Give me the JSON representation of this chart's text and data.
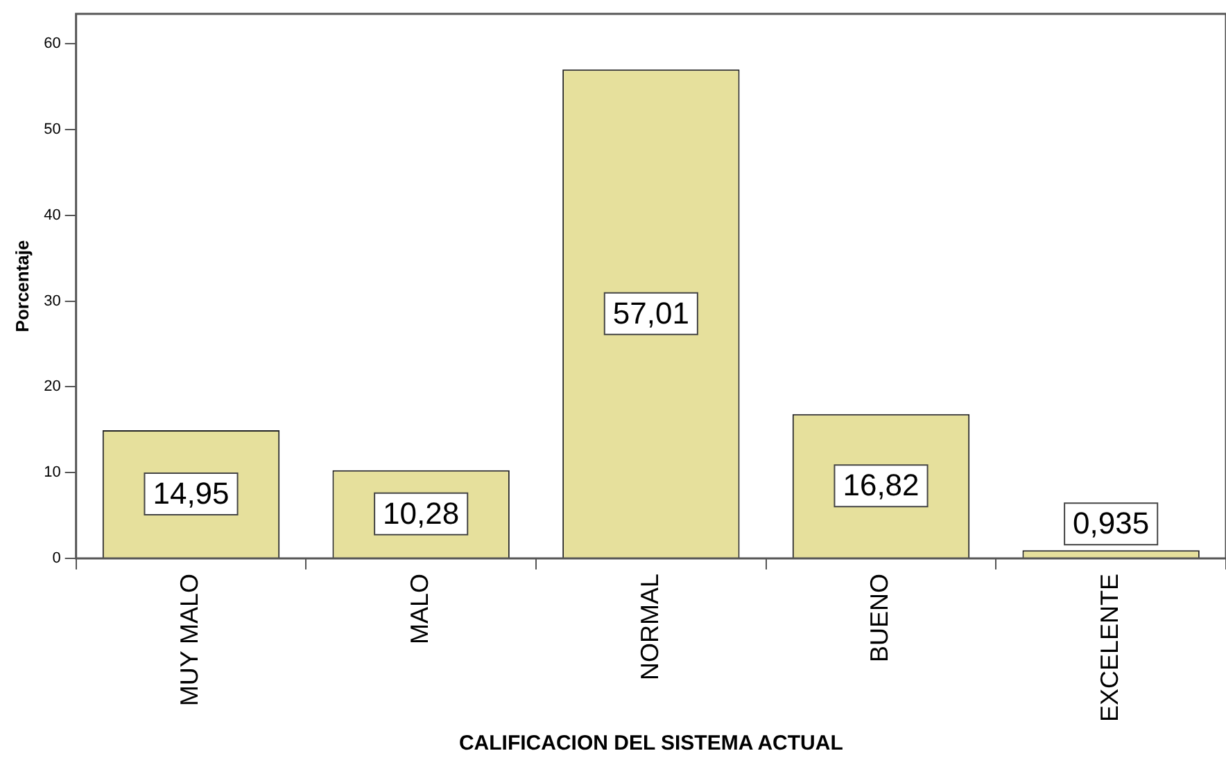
{
  "chart_data": {
    "type": "bar",
    "xlabel": "CALIFICACION DEL SISTEMA ACTUAL",
    "ylabel": "Porcentaje",
    "categories": [
      "MUY MALO",
      "MALO",
      "NORMAL",
      "BUENO",
      "EXCELENTE"
    ],
    "values": [
      14.95,
      10.28,
      57.01,
      16.82,
      0.935
    ],
    "value_labels": [
      "14,95",
      "10,28",
      "57,01",
      "16,82",
      "0,935"
    ],
    "color": "#e6e09c",
    "ylim": [
      0,
      63.5
    ],
    "yticks": [
      0,
      10,
      20,
      30,
      40,
      50,
      60
    ],
    "grid": false,
    "legend": false
  }
}
